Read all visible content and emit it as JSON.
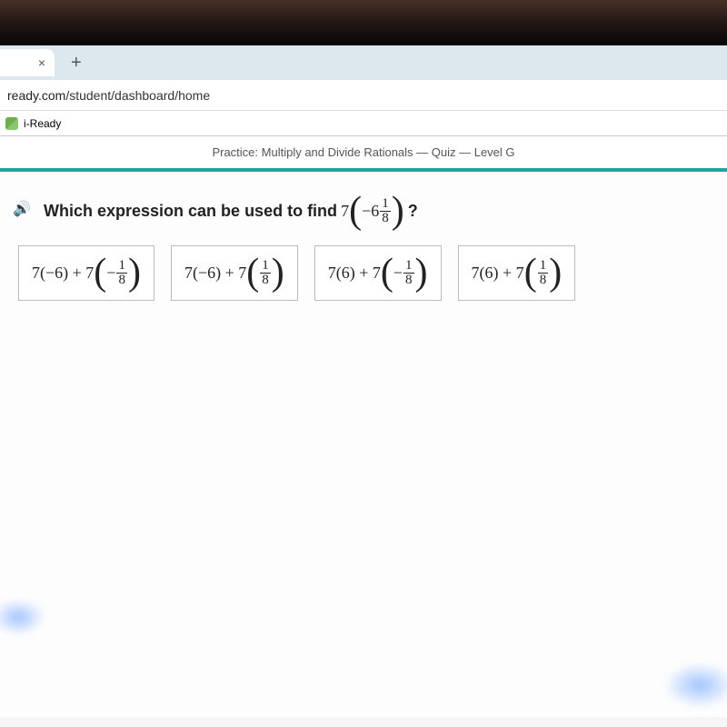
{
  "browser": {
    "tab_close": "×",
    "new_tab": "+",
    "url_host": "ready.com",
    "url_path": "/student/dashboard/home",
    "bookmark_label": "i-Ready"
  },
  "header": {
    "title": "Practice: Multiply and Divide Rationals — Quiz — Level G",
    "accent_color": "#1aa89e"
  },
  "question": {
    "prefix": "Which expression can be used to find",
    "coefficient": "7",
    "mixed_whole": "−6",
    "mixed_num": "1",
    "mixed_den": "8",
    "suffix": "?"
  },
  "options": [
    {
      "a": "7(−6) + 7",
      "neg": "−",
      "num": "1",
      "den": "8"
    },
    {
      "a": "7(−6) + 7",
      "neg": "",
      "num": "1",
      "den": "8"
    },
    {
      "a": "7(6) + 7",
      "neg": "−",
      "num": "1",
      "den": "8"
    },
    {
      "a": "7(6) + 7",
      "neg": "",
      "num": "1",
      "den": "8"
    }
  ]
}
